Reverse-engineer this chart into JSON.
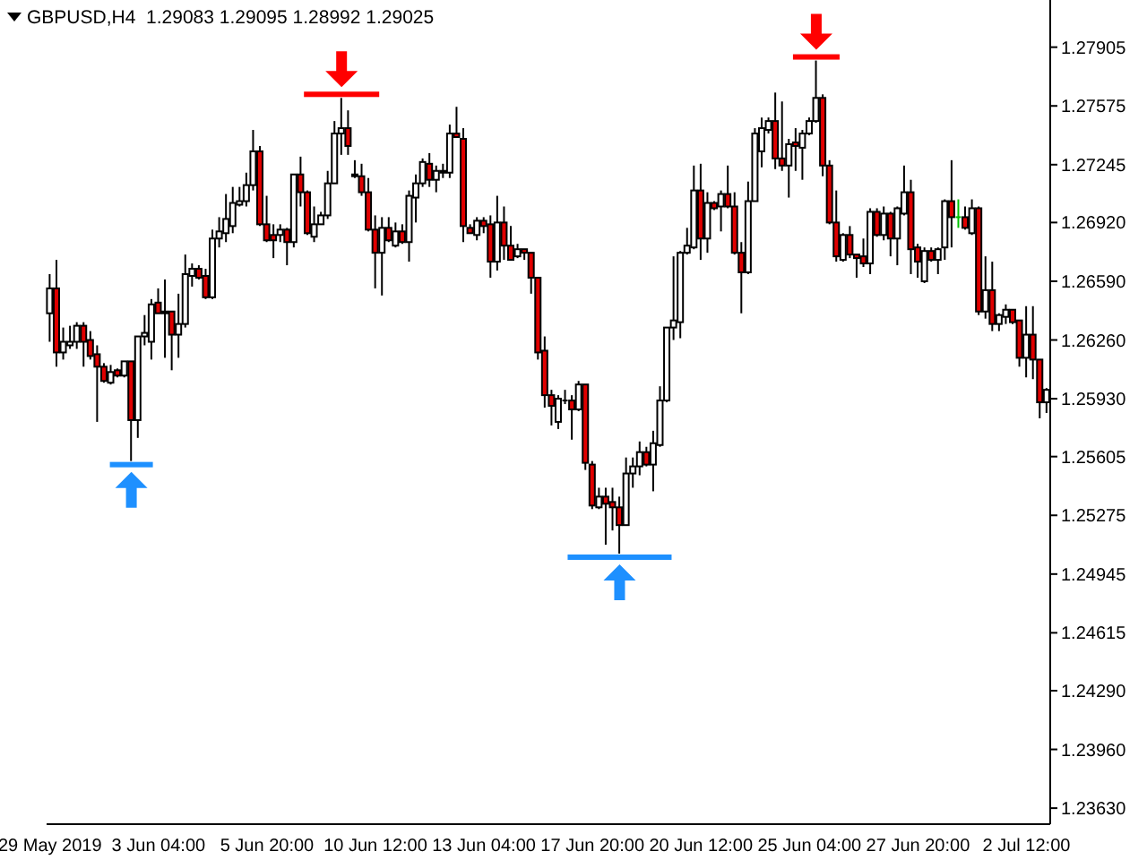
{
  "chart_data": {
    "type": "candlestick",
    "title": "GBPUSD,H4  1.29083 1.29095 1.28992 1.29025",
    "categories": [
      "29 May 2019",
      null,
      null,
      null,
      null,
      null,
      null,
      null,
      null,
      null,
      null,
      null,
      null,
      null,
      null,
      null,
      "3 Jun 04:00",
      null,
      null,
      null,
      null,
      null,
      null,
      null,
      null,
      null,
      null,
      null,
      null,
      null,
      null,
      null,
      "5 Jun 20:00",
      null,
      null,
      null,
      null,
      null,
      null,
      null,
      null,
      null,
      null,
      null,
      null,
      null,
      null,
      null,
      "10 Jun 12:00",
      null,
      null,
      null,
      null,
      null,
      null,
      null,
      null,
      null,
      null,
      null,
      null,
      null,
      null,
      null,
      "13 Jun 04:00",
      null,
      null,
      null,
      null,
      null,
      null,
      null,
      null,
      null,
      null,
      null,
      null,
      null,
      null,
      null,
      "17 Jun 20:00",
      null,
      null,
      null,
      null,
      null,
      null,
      null,
      null,
      null,
      null,
      null,
      null,
      null,
      null,
      null,
      "20 Jun 12:00",
      null,
      null,
      null,
      null,
      null,
      null,
      null,
      null,
      null,
      null,
      null,
      null,
      null,
      null,
      null,
      "25 Jun 04:00",
      null,
      null,
      null,
      null,
      null,
      null,
      null,
      null,
      null,
      null,
      null,
      null,
      null,
      null,
      null,
      "27 Jun 20:00",
      null,
      null,
      null,
      null,
      null,
      null,
      null,
      null,
      null,
      null,
      null,
      null,
      null,
      null,
      null,
      "2 Jul 12:00",
      null,
      null,
      null
    ],
    "ohlc": [
      [
        1.2641,
        1.2663,
        1.2625,
        1.2655
      ],
      [
        1.2655,
        1.2671,
        1.2611,
        1.2619
      ],
      [
        1.2619,
        1.2633,
        1.2615,
        1.2625
      ],
      [
        1.2623,
        1.2634,
        1.2621,
        1.2625
      ],
      [
        1.2625,
        1.2636,
        1.2621,
        1.2634
      ],
      [
        1.2634,
        1.2636,
        1.2611,
        1.2625
      ],
      [
        1.2626,
        1.2631,
        1.2615,
        1.2617
      ],
      [
        1.2618,
        1.2623,
        1.258,
        1.2611
      ],
      [
        1.2611,
        1.2613,
        1.2602,
        1.2603
      ],
      [
        1.2602,
        1.2612,
        1.2601,
        1.2608
      ],
      [
        1.2609,
        1.261,
        1.2605,
        1.2606
      ],
      [
        1.2606,
        1.2614,
        1.2605,
        1.2614
      ],
      [
        1.2614,
        1.2614,
        1.2558,
        1.2581
      ],
      [
        1.2581,
        1.2628,
        1.2571,
        1.2628
      ],
      [
        1.2628,
        1.264,
        1.2623,
        1.263
      ],
      [
        1.2625,
        1.2649,
        1.2615,
        1.2646
      ],
      [
        1.2647,
        1.2655,
        1.2641,
        1.2641
      ],
      [
        1.2642,
        1.266,
        1.2616,
        1.2641
      ],
      [
        1.2642,
        1.2642,
        1.2609,
        1.2629
      ],
      [
        1.2629,
        1.2652,
        1.2616,
        1.2635
      ],
      [
        1.2635,
        1.2674,
        1.2633,
        1.2663
      ],
      [
        1.2662,
        1.2669,
        1.2656,
        1.2666
      ],
      [
        1.2666,
        1.2668,
        1.266,
        1.2661
      ],
      [
        1.2662,
        1.2666,
        1.2649,
        1.265
      ],
      [
        1.265,
        1.2688,
        1.2649,
        1.2683
      ],
      [
        1.2683,
        1.2695,
        1.2678,
        1.2687
      ],
      [
        1.2686,
        1.2708,
        1.2681,
        1.2694
      ],
      [
        1.269,
        1.2712,
        1.2686,
        1.2703
      ],
      [
        1.2702,
        1.2712,
        1.2701,
        1.2704
      ],
      [
        1.2704,
        1.272,
        1.2701,
        1.2713
      ],
      [
        1.2713,
        1.2744,
        1.271,
        1.2732
      ],
      [
        1.2732,
        1.2735,
        1.269,
        1.2691
      ],
      [
        1.2691,
        1.2707,
        1.2681,
        1.2682
      ],
      [
        1.2685,
        1.2691,
        1.2672,
        1.2682
      ],
      [
        1.2685,
        1.2691,
        1.2681,
        1.2688
      ],
      [
        1.2688,
        1.2689,
        1.2668,
        1.2681
      ],
      [
        1.2681,
        1.2719,
        1.2678,
        1.2719
      ],
      [
        1.2719,
        1.2729,
        1.2701,
        1.2709
      ],
      [
        1.2709,
        1.271,
        1.2685,
        1.2686
      ],
      [
        1.2684,
        1.2701,
        1.2681,
        1.2691
      ],
      [
        1.2691,
        1.2698,
        1.2691,
        1.2696
      ],
      [
        1.2696,
        1.2721,
        1.2694,
        1.2714
      ],
      [
        1.2714,
        1.2749,
        1.2714,
        1.2742
      ],
      [
        1.2742,
        1.2762,
        1.273,
        1.2745
      ],
      [
        1.2745,
        1.2755,
        1.273,
        1.2735
      ],
      [
        1.2719,
        1.2727,
        1.2717,
        1.2718
      ],
      [
        1.2718,
        1.2725,
        1.2707,
        1.2709
      ],
      [
        1.2709,
        1.2717,
        1.2687,
        1.2688
      ],
      [
        1.2688,
        1.2696,
        1.2655,
        1.2675
      ],
      [
        1.2675,
        1.2695,
        1.2651,
        1.2689
      ],
      [
        1.2689,
        1.2695,
        1.2681,
        1.2682
      ],
      [
        1.2679,
        1.2692,
        1.2678,
        1.2687
      ],
      [
        1.2687,
        1.2691,
        1.268,
        1.2681
      ],
      [
        1.2681,
        1.271,
        1.267,
        1.2707
      ],
      [
        1.2706,
        1.2719,
        1.2692,
        1.2714
      ],
      [
        1.2714,
        1.2728,
        1.2712,
        1.2726
      ],
      [
        1.2725,
        1.2731,
        1.2712,
        1.2716
      ],
      [
        1.2716,
        1.2724,
        1.2709,
        1.2721
      ],
      [
        1.272,
        1.2725,
        1.2717,
        1.2721
      ],
      [
        1.272,
        1.2747,
        1.2717,
        1.2742
      ],
      [
        1.2742,
        1.2757,
        1.274,
        1.274
      ],
      [
        1.2739,
        1.2745,
        1.2681,
        1.269
      ],
      [
        1.2689,
        1.2691,
        1.2686,
        1.2686
      ],
      [
        1.2685,
        1.2695,
        1.2682,
        1.2693
      ],
      [
        1.2693,
        1.2695,
        1.2686,
        1.269
      ],
      [
        1.2691,
        1.2696,
        1.2661,
        1.267
      ],
      [
        1.267,
        1.2707,
        1.2665,
        1.2692
      ],
      [
        1.2692,
        1.2701,
        1.2671,
        1.2679
      ],
      [
        1.2679,
        1.269,
        1.2671,
        1.2671
      ],
      [
        1.2673,
        1.268,
        1.2672,
        1.2677
      ],
      [
        1.2677,
        1.2677,
        1.2671,
        1.2675
      ],
      [
        1.2675,
        1.2675,
        1.2652,
        1.2661
      ],
      [
        1.2661,
        1.2661,
        1.2615,
        1.2619
      ],
      [
        1.262,
        1.2628,
        1.2588,
        1.2595
      ],
      [
        1.2595,
        1.2598,
        1.2578,
        1.2589
      ],
      [
        1.258,
        1.2595,
        1.2576,
        1.2593
      ],
      [
        1.2592,
        1.2598,
        1.259,
        1.2592
      ],
      [
        1.2592,
        1.2595,
        1.257,
        1.2587
      ],
      [
        1.2587,
        1.2603,
        1.2586,
        1.2601
      ],
      [
        1.2601,
        1.2601,
        1.2553,
        1.2557
      ],
      [
        1.2556,
        1.2558,
        1.2531,
        1.2533
      ],
      [
        1.2532,
        1.2543,
        1.2531,
        1.2538
      ],
      [
        1.2538,
        1.2543,
        1.2511,
        1.2534
      ],
      [
        1.2535,
        1.2543,
        1.2519,
        1.2532
      ],
      [
        1.2532,
        1.2538,
        1.2506,
        1.2522
      ],
      [
        1.2522,
        1.256,
        1.2522,
        1.2551
      ],
      [
        1.2551,
        1.256,
        1.2543,
        1.2555
      ],
      [
        1.2555,
        1.2569,
        1.255,
        1.2563
      ],
      [
        1.2563,
        1.2566,
        1.2555,
        1.2556
      ],
      [
        1.2556,
        1.2575,
        1.2541,
        1.2568
      ],
      [
        1.2567,
        1.26,
        1.2566,
        1.2592
      ],
      [
        1.2592,
        1.2633,
        1.2591,
        1.2633
      ],
      [
        1.2633,
        1.2673,
        1.2626,
        1.2637
      ],
      [
        1.2636,
        1.2676,
        1.2627,
        1.2675
      ],
      [
        1.2675,
        1.2689,
        1.2674,
        1.2679
      ],
      [
        1.2678,
        1.2724,
        1.2677,
        1.271
      ],
      [
        1.271,
        1.2725,
        1.2671,
        1.2683
      ],
      [
        1.2683,
        1.2709,
        1.2675,
        1.2703
      ],
      [
        1.2703,
        1.2704,
        1.2699,
        1.27
      ],
      [
        1.2701,
        1.271,
        1.2687,
        1.2708
      ],
      [
        1.2708,
        1.2724,
        1.27,
        1.2701
      ],
      [
        1.2701,
        1.2709,
        1.2674,
        1.2675
      ],
      [
        1.2675,
        1.2681,
        1.2641,
        1.2664
      ],
      [
        1.2664,
        1.2715,
        1.2663,
        1.2704
      ],
      [
        1.2704,
        1.2745,
        1.2704,
        1.2742
      ],
      [
        1.2732,
        1.2751,
        1.2723,
        1.2745
      ],
      [
        1.2744,
        1.2751,
        1.2742,
        1.2749
      ],
      [
        1.2749,
        1.2765,
        1.2722,
        1.2728
      ],
      [
        1.2728,
        1.276,
        1.2721,
        1.2724
      ],
      [
        1.2724,
        1.2739,
        1.2706,
        1.2736
      ],
      [
        1.2737,
        1.2745,
        1.2721,
        1.2735
      ],
      [
        1.2734,
        1.2744,
        1.2716,
        1.2742
      ],
      [
        1.2742,
        1.2751,
        1.2741,
        1.2749
      ],
      [
        1.2749,
        1.2783,
        1.2748,
        1.2762
      ],
      [
        1.2762,
        1.2764,
        1.2718,
        1.2724
      ],
      [
        1.2724,
        1.2727,
        1.2691,
        1.2692
      ],
      [
        1.2692,
        1.271,
        1.267,
        1.2673
      ],
      [
        1.2671,
        1.2686,
        1.267,
        1.2685
      ],
      [
        1.2685,
        1.269,
        1.2672,
        1.2674
      ],
      [
        1.2674,
        1.2674,
        1.2661,
        1.2672
      ],
      [
        1.2673,
        1.2683,
        1.2667,
        1.2669
      ],
      [
        1.2669,
        1.27,
        1.2663,
        1.2698
      ],
      [
        1.2698,
        1.27,
        1.2684,
        1.2685
      ],
      [
        1.2685,
        1.2701,
        1.2682,
        1.2697
      ],
      [
        1.2697,
        1.2698,
        1.2673,
        1.2683
      ],
      [
        1.2683,
        1.2701,
        1.2668,
        1.27
      ],
      [
        1.2697,
        1.2724,
        1.2696,
        1.2709
      ],
      [
        1.2709,
        1.2716,
        1.2663,
        1.2677
      ],
      [
        1.2678,
        1.268,
        1.2661,
        1.267
      ],
      [
        1.2659,
        1.2678,
        1.2658,
        1.2676
      ],
      [
        1.2676,
        1.2678,
        1.267,
        1.2671
      ],
      [
        1.2671,
        1.2678,
        1.2663,
        1.2677
      ],
      [
        1.2678,
        1.2705,
        1.2671,
        1.2704
      ],
      [
        1.2704,
        1.2727,
        1.2678,
        1.2695
      ],
      [
        1.2695,
        1.2705,
        1.2689,
        1.2695
      ],
      [
        1.2695,
        1.2701,
        1.2688,
        1.2689
      ],
      [
        1.2686,
        1.2705,
        1.2685,
        1.27
      ],
      [
        1.27,
        1.2701,
        1.264,
        1.2642
      ],
      [
        1.2642,
        1.2673,
        1.2638,
        1.2654
      ],
      [
        1.2654,
        1.267,
        1.2631,
        1.2635
      ],
      [
        1.2635,
        1.2641,
        1.2631,
        1.264
      ],
      [
        1.2639,
        1.2646,
        1.2635,
        1.2643
      ],
      [
        1.2643,
        1.2643,
        1.2635,
        1.2636
      ],
      [
        1.2637,
        1.2637,
        1.2611,
        1.2616
      ],
      [
        1.2616,
        1.2645,
        1.2605,
        1.2629
      ],
      [
        1.2629,
        1.2645,
        1.2604,
        1.2615
      ],
      [
        1.2615,
        1.2615,
        1.2582,
        1.2591
      ],
      [
        1.2591,
        1.2599,
        1.2585,
        1.2598
      ]
    ],
    "colors": [
      "#ffffff",
      "#e00000",
      "#ffffff",
      "#ffffff",
      "#ffffff",
      "#e00000",
      "#e00000",
      "#e00000",
      "#e00000",
      "#ffffff",
      "#e00000",
      "#ffffff",
      "#e00000",
      "#ffffff",
      "#ffffff",
      "#ffffff",
      "#e00000",
      "#e00000",
      "#e00000",
      "#ffffff",
      "#ffffff",
      "#ffffff",
      "#e00000",
      "#e00000",
      "#ffffff",
      "#ffffff",
      "#ffffff",
      "#ffffff",
      "#ffffff",
      "#ffffff",
      "#ffffff",
      "#e00000",
      "#e00000",
      "#e00000",
      "#ffffff",
      "#e00000",
      "#ffffff",
      "#e00000",
      "#e00000",
      "#ffffff",
      "#ffffff",
      "#ffffff",
      "#ffffff",
      "#ffffff",
      "#e00000",
      "#e00000",
      "#e00000",
      "#e00000",
      "#e00000",
      "#ffffff",
      "#e00000",
      "#ffffff",
      "#e00000",
      "#ffffff",
      "#ffffff",
      "#ffffff",
      "#e00000",
      "#ffffff",
      "#ffffff",
      "#ffffff",
      "#e00000",
      "#e00000",
      "#e00000",
      "#ffffff",
      "#e00000",
      "#e00000",
      "#ffffff",
      "#e00000",
      "#e00000",
      "#ffffff",
      "#e00000",
      "#e00000",
      "#e00000",
      "#e00000",
      "#e00000",
      "#ffffff",
      "#000000",
      "#e00000",
      "#ffffff",
      "#e00000",
      "#e00000",
      "#ffffff",
      "#e00000",
      "#e00000",
      "#e00000",
      "#ffffff",
      "#ffffff",
      "#ffffff",
      "#e00000",
      "#ffffff",
      "#ffffff",
      "#ffffff",
      "#ffffff",
      "#ffffff",
      "#ffffff",
      "#ffffff",
      "#e00000",
      "#ffffff",
      "#e00000",
      "#ffffff",
      "#e00000",
      "#e00000",
      "#e00000",
      "#ffffff",
      "#ffffff",
      "#ffffff",
      "#ffffff",
      "#e00000",
      "#e00000",
      "#ffffff",
      "#e00000",
      "#ffffff",
      "#ffffff",
      "#ffffff",
      "#e00000",
      "#e00000",
      "#e00000",
      "#ffffff",
      "#e00000",
      "#e00000",
      "#e00000",
      "#ffffff",
      "#e00000",
      "#ffffff",
      "#e00000",
      "#ffffff",
      "#ffffff",
      "#e00000",
      "#e00000",
      "#ffffff",
      "#e00000",
      "#ffffff",
      "#ffffff",
      "#e00000",
      "#00c000",
      "#e00000",
      "#ffffff",
      "#e00000",
      "#ffffff",
      "#e00000",
      "#ffffff",
      "#ffffff",
      "#e00000",
      "#e00000",
      "#ffffff",
      "#e00000",
      "#e00000",
      "#ffffff"
    ],
    "ylim": [
      1.2354,
      1.2817
    ],
    "yticks": [
      1.27905,
      1.27575,
      1.27245,
      {
        "value": 1.2692,
        "label": "1.26920"
      },
      {
        "value": 1.2659,
        "label": "1.26590"
      },
      {
        "value": 1.2626,
        "label": "1.26260"
      },
      {
        "value": 1.2593,
        "label": "1.25930"
      },
      1.25605,
      1.25275,
      1.24945,
      1.24615,
      {
        "value": 1.2429,
        "label": "1.24290"
      },
      {
        "value": 1.2396,
        "label": "1.23960"
      },
      {
        "value": 1.2363,
        "label": "1.23630"
      }
    ]
  }
}
